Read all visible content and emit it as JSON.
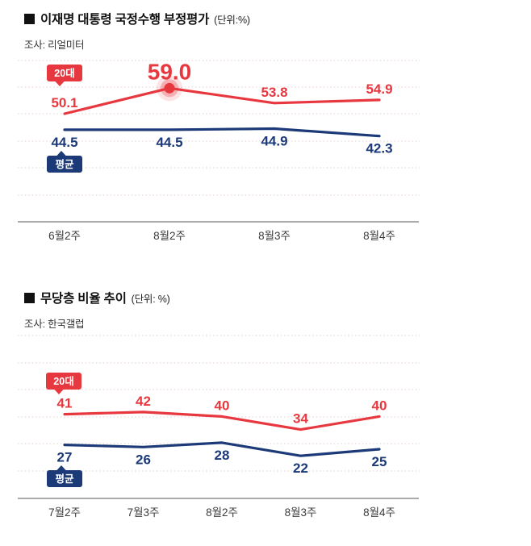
{
  "page": {
    "background": "#ffffff"
  },
  "colors": {
    "accent_red": "#e8383f",
    "accent_navy": "#1c3a78",
    "grid": "#ead9d9",
    "axis": "#8f8f8f",
    "tick": "#3b3b3b"
  },
  "chart_data": [
    {
      "type": "line",
      "title": "이재명 대통령 국정수행 부정평가",
      "unit_label": "(단위:%)",
      "source": "조사: 리얼미터",
      "categories": [
        "6월2주",
        "8월2주",
        "8월3주",
        "8월4주"
      ],
      "series": [
        {
          "name": "20대",
          "color": "#e8383f",
          "values": [
            50.1,
            59.0,
            53.8,
            54.9
          ],
          "value_labels": [
            "50.1",
            "59.0",
            "53.8",
            "54.9"
          ],
          "label_position": "above",
          "highlight_index": 1
        },
        {
          "name": "평균",
          "color": "#1c3a78",
          "values": [
            44.5,
            44.5,
            44.9,
            42.3
          ],
          "value_labels": [
            "44.5",
            "44.5",
            "44.9",
            "42.3"
          ],
          "label_position": "below"
        }
      ],
      "ylim": [
        20,
        65
      ],
      "grid": "dotted-horizontal",
      "legend_position": "inline-badges-left",
      "xlabel": "",
      "ylabel": ""
    },
    {
      "type": "line",
      "title": "무당층 비율 추이",
      "unit_label": "(단위: %)",
      "source": "조사: 한국갤럽",
      "categories": [
        "7월2주",
        "7월3주",
        "8월2주",
        "8월3주",
        "8월4주"
      ],
      "series": [
        {
          "name": "20대",
          "color": "#e8383f",
          "values": [
            41,
            42,
            40,
            34,
            40
          ],
          "value_labels": [
            "41",
            "42",
            "40",
            "34",
            "40"
          ],
          "label_position": "above"
        },
        {
          "name": "평균",
          "color": "#1c3a78",
          "values": [
            27,
            26,
            28,
            22,
            25
          ],
          "value_labels": [
            "27",
            "26",
            "28",
            "22",
            "25"
          ],
          "label_position": "below"
        }
      ],
      "ylim": [
        11,
        70
      ],
      "grid": "dotted-horizontal",
      "legend_position": "inline-badges-left",
      "xlabel": "",
      "ylabel": ""
    }
  ]
}
